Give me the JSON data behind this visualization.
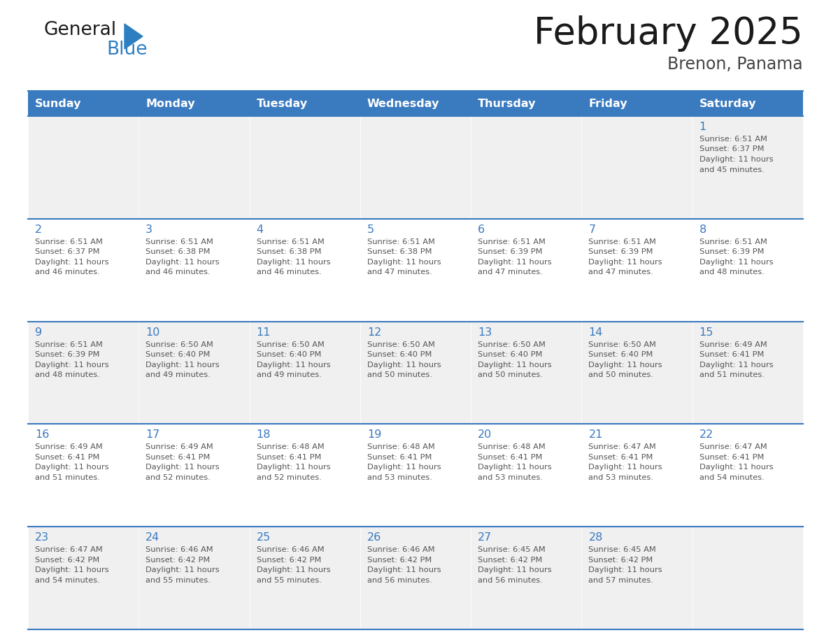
{
  "title": "February 2025",
  "subtitle": "Brenon, Panama",
  "days_of_week": [
    "Sunday",
    "Monday",
    "Tuesday",
    "Wednesday",
    "Thursday",
    "Friday",
    "Saturday"
  ],
  "header_bg": "#3a7abf",
  "header_text": "#ffffff",
  "cell_bg_odd": "#f0f0f0",
  "cell_bg_even": "#ffffff",
  "cell_border": "#3a7abf",
  "day_number_color": "#3a7abf",
  "text_color": "#555555",
  "title_color": "#1a1a1a",
  "subtitle_color": "#444444",
  "logo_general_color": "#1a1a1a",
  "logo_blue_color": "#2e7fc1",
  "calendar_data": [
    {
      "day": 1,
      "col": 6,
      "row": 0,
      "sunrise": "6:51 AM",
      "sunset": "6:37 PM",
      "daylight_hours": 11,
      "daylight_minutes": 45
    },
    {
      "day": 2,
      "col": 0,
      "row": 1,
      "sunrise": "6:51 AM",
      "sunset": "6:37 PM",
      "daylight_hours": 11,
      "daylight_minutes": 46
    },
    {
      "day": 3,
      "col": 1,
      "row": 1,
      "sunrise": "6:51 AM",
      "sunset": "6:38 PM",
      "daylight_hours": 11,
      "daylight_minutes": 46
    },
    {
      "day": 4,
      "col": 2,
      "row": 1,
      "sunrise": "6:51 AM",
      "sunset": "6:38 PM",
      "daylight_hours": 11,
      "daylight_minutes": 46
    },
    {
      "day": 5,
      "col": 3,
      "row": 1,
      "sunrise": "6:51 AM",
      "sunset": "6:38 PM",
      "daylight_hours": 11,
      "daylight_minutes": 47
    },
    {
      "day": 6,
      "col": 4,
      "row": 1,
      "sunrise": "6:51 AM",
      "sunset": "6:39 PM",
      "daylight_hours": 11,
      "daylight_minutes": 47
    },
    {
      "day": 7,
      "col": 5,
      "row": 1,
      "sunrise": "6:51 AM",
      "sunset": "6:39 PM",
      "daylight_hours": 11,
      "daylight_minutes": 47
    },
    {
      "day": 8,
      "col": 6,
      "row": 1,
      "sunrise": "6:51 AM",
      "sunset": "6:39 PM",
      "daylight_hours": 11,
      "daylight_minutes": 48
    },
    {
      "day": 9,
      "col": 0,
      "row": 2,
      "sunrise": "6:51 AM",
      "sunset": "6:39 PM",
      "daylight_hours": 11,
      "daylight_minutes": 48
    },
    {
      "day": 10,
      "col": 1,
      "row": 2,
      "sunrise": "6:50 AM",
      "sunset": "6:40 PM",
      "daylight_hours": 11,
      "daylight_minutes": 49
    },
    {
      "day": 11,
      "col": 2,
      "row": 2,
      "sunrise": "6:50 AM",
      "sunset": "6:40 PM",
      "daylight_hours": 11,
      "daylight_minutes": 49
    },
    {
      "day": 12,
      "col": 3,
      "row": 2,
      "sunrise": "6:50 AM",
      "sunset": "6:40 PM",
      "daylight_hours": 11,
      "daylight_minutes": 50
    },
    {
      "day": 13,
      "col": 4,
      "row": 2,
      "sunrise": "6:50 AM",
      "sunset": "6:40 PM",
      "daylight_hours": 11,
      "daylight_minutes": 50
    },
    {
      "day": 14,
      "col": 5,
      "row": 2,
      "sunrise": "6:50 AM",
      "sunset": "6:40 PM",
      "daylight_hours": 11,
      "daylight_minutes": 50
    },
    {
      "day": 15,
      "col": 6,
      "row": 2,
      "sunrise": "6:49 AM",
      "sunset": "6:41 PM",
      "daylight_hours": 11,
      "daylight_minutes": 51
    },
    {
      "day": 16,
      "col": 0,
      "row": 3,
      "sunrise": "6:49 AM",
      "sunset": "6:41 PM",
      "daylight_hours": 11,
      "daylight_minutes": 51
    },
    {
      "day": 17,
      "col": 1,
      "row": 3,
      "sunrise": "6:49 AM",
      "sunset": "6:41 PM",
      "daylight_hours": 11,
      "daylight_minutes": 52
    },
    {
      "day": 18,
      "col": 2,
      "row": 3,
      "sunrise": "6:48 AM",
      "sunset": "6:41 PM",
      "daylight_hours": 11,
      "daylight_minutes": 52
    },
    {
      "day": 19,
      "col": 3,
      "row": 3,
      "sunrise": "6:48 AM",
      "sunset": "6:41 PM",
      "daylight_hours": 11,
      "daylight_minutes": 53
    },
    {
      "day": 20,
      "col": 4,
      "row": 3,
      "sunrise": "6:48 AM",
      "sunset": "6:41 PM",
      "daylight_hours": 11,
      "daylight_minutes": 53
    },
    {
      "day": 21,
      "col": 5,
      "row": 3,
      "sunrise": "6:47 AM",
      "sunset": "6:41 PM",
      "daylight_hours": 11,
      "daylight_minutes": 53
    },
    {
      "day": 22,
      "col": 6,
      "row": 3,
      "sunrise": "6:47 AM",
      "sunset": "6:41 PM",
      "daylight_hours": 11,
      "daylight_minutes": 54
    },
    {
      "day": 23,
      "col": 0,
      "row": 4,
      "sunrise": "6:47 AM",
      "sunset": "6:42 PM",
      "daylight_hours": 11,
      "daylight_minutes": 54
    },
    {
      "day": 24,
      "col": 1,
      "row": 4,
      "sunrise": "6:46 AM",
      "sunset": "6:42 PM",
      "daylight_hours": 11,
      "daylight_minutes": 55
    },
    {
      "day": 25,
      "col": 2,
      "row": 4,
      "sunrise": "6:46 AM",
      "sunset": "6:42 PM",
      "daylight_hours": 11,
      "daylight_minutes": 55
    },
    {
      "day": 26,
      "col": 3,
      "row": 4,
      "sunrise": "6:46 AM",
      "sunset": "6:42 PM",
      "daylight_hours": 11,
      "daylight_minutes": 56
    },
    {
      "day": 27,
      "col": 4,
      "row": 4,
      "sunrise": "6:45 AM",
      "sunset": "6:42 PM",
      "daylight_hours": 11,
      "daylight_minutes": 56
    },
    {
      "day": 28,
      "col": 5,
      "row": 4,
      "sunrise": "6:45 AM",
      "sunset": "6:42 PM",
      "daylight_hours": 11,
      "daylight_minutes": 57
    }
  ]
}
